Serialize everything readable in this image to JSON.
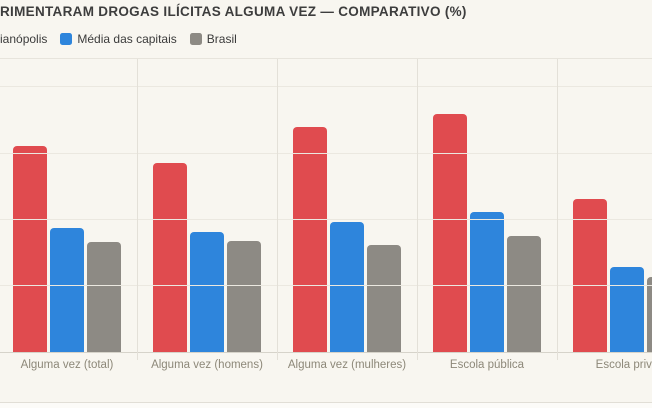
{
  "title": "RIMENTARAM DROGAS ILÍCITAS ALGUMA VEZ — COMPARATIVO (%)",
  "legend": {
    "items": [
      {
        "label": "ianópolis",
        "color": "#e04b4f",
        "swatch_visible": false
      },
      {
        "label": "Média das capitais",
        "color": "#2e85dc",
        "swatch_visible": true
      },
      {
        "label": "Brasil",
        "color": "#8d8a84",
        "swatch_visible": true
      }
    ]
  },
  "chart_data": {
    "type": "bar",
    "title": "RIMENTARAM DROGAS ILÍCITAS ALGUMA VEZ — COMPARATIVO (%)",
    "categories": [
      "Alguma vez (total)",
      "Alguma vez (homens)",
      "Alguma vez (mulheres)",
      "Escola pública",
      "Escola priva"
    ],
    "series": [
      {
        "name": "ianópolis",
        "color": "#e04b4f",
        "values": [
          15.6,
          14.3,
          17.0,
          18.0,
          11.6
        ]
      },
      {
        "name": "Média das capitais",
        "color": "#2e85dc",
        "values": [
          9.4,
          9.1,
          9.8,
          10.6,
          6.4
        ]
      },
      {
        "name": "Brasil",
        "color": "#8d8a84",
        "values": [
          8.3,
          8.4,
          8.1,
          8.8,
          5.7
        ]
      }
    ],
    "xlabel": "",
    "ylabel": "",
    "ylim": [
      0,
      22.3
    ],
    "gridlines_y": [
      5,
      10,
      15,
      20
    ],
    "grid": true,
    "legend_position": "top",
    "value_axis_labels_visible": false
  },
  "colors": {
    "background": "#f8f6f0",
    "hgrid": "#ebe8e0",
    "vgrid": "#e3e0d8",
    "baseline": "#d6d3ca",
    "title_text": "#3d3d3d",
    "category_text": "#8d8879"
  }
}
